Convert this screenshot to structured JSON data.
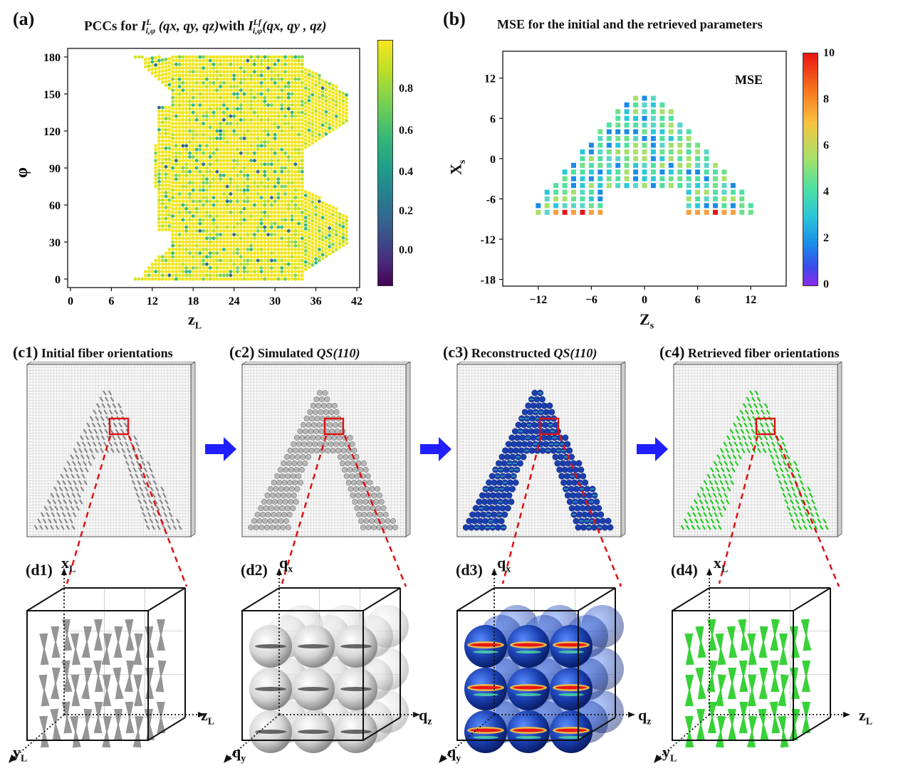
{
  "panel_a": {
    "label": "(a)",
    "title_prefix": "PCCs for ",
    "title_sym1": "I",
    "title_sup1": "L",
    "title_sub1": "i,φ",
    "title_args1": " (qx, qy, qz)",
    "title_mid": "with ",
    "title_sym2": "I",
    "title_sup2": "Lf",
    "title_sub2": "i,φ",
    "title_args2": "(qx, qy , qz)",
    "ylabel": "φ",
    "xlabel": "z",
    "xlabel_sub": "L",
    "yticks": [
      "180",
      "150",
      "120",
      "90",
      "60",
      "30",
      "0"
    ],
    "xticks": [
      "0",
      "6",
      "12",
      "18",
      "24",
      "30",
      "36",
      "42"
    ],
    "colorbar_ticks": [
      "0.8",
      "0.6",
      "0.4",
      "0.2",
      "0.0"
    ]
  },
  "panel_b": {
    "label": "(b)",
    "title": "MSE for the initial  and the  retrieved parameters",
    "legend": "MSE",
    "ylabel": "X",
    "ylabel_sub": "s",
    "xlabel": "Z",
    "xlabel_sub": "s",
    "yticks": [
      "12",
      "6",
      "0",
      "-6",
      "-12",
      "-18"
    ],
    "xticks": [
      "−12",
      "−6",
      "0",
      "6",
      "12"
    ],
    "colorbar_ticks": [
      "10",
      "8",
      "6",
      "4",
      "2",
      "0"
    ]
  },
  "row_c": [
    {
      "label": "(c1)",
      "text": "Initial fiber orientations",
      "italic": ""
    },
    {
      "label": "(c2)",
      "text": "Simulated ",
      "italic": "QS(110)"
    },
    {
      "label": "(c3)",
      "text": "Reconstructed ",
      "italic": "QS(110)"
    },
    {
      "label": "(c4)",
      "text": "Retrieved fiber orientations",
      "italic": ""
    }
  ],
  "row_d": [
    {
      "label": "(d1)",
      "up": "x",
      "up_sub": "L",
      "right": "z",
      "right_sub": "L",
      "down": "y",
      "down_sub": "L"
    },
    {
      "label": "(d2)",
      "up": "q",
      "up_sub": "x",
      "right": "q",
      "right_sub": "z",
      "down": "q",
      "down_sub": "y"
    },
    {
      "label": "(d3)",
      "up": "q",
      "up_sub": "x",
      "right": "q",
      "right_sub": "z",
      "down": "q",
      "down_sub": "y"
    },
    {
      "label": "(d4)",
      "up": "x",
      "up_sub": "L",
      "right": "z",
      "right_sub": "L",
      "down": "y",
      "down_sub": "L"
    }
  ],
  "colors": {
    "arrow": "#1f1fff",
    "zoom_box": "#e01010",
    "fiber_gray": "#8a8a8a",
    "fiber_green": "#22cc22",
    "sphere_blue": "#1a3fb0",
    "viridis_high": "#f2e51d",
    "viridis_low": "#440154"
  }
}
